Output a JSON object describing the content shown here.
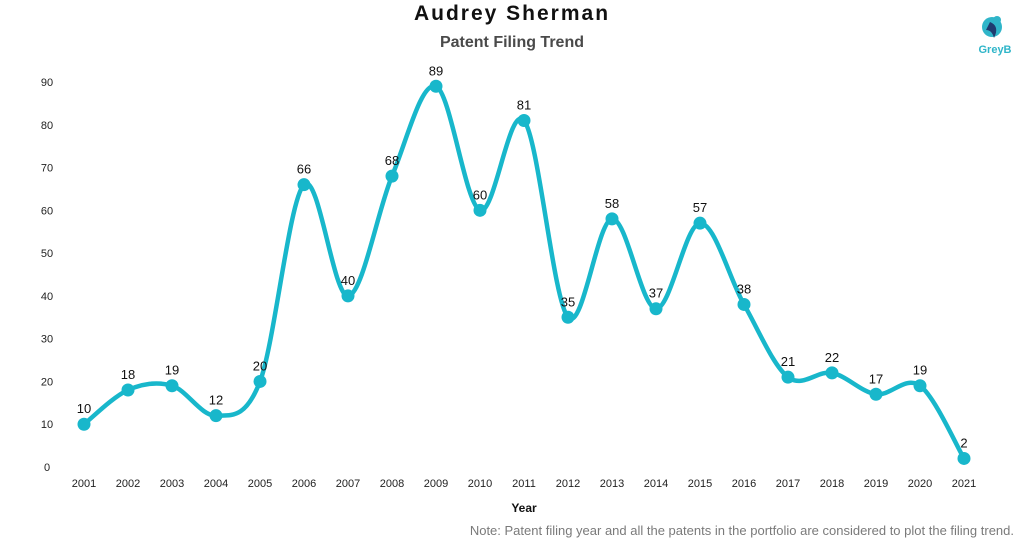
{
  "chart_data": {
    "type": "line",
    "title": "Audrey Sherman",
    "subtitle": "Patent Filing Trend",
    "xlabel": "Year",
    "ylabel": "",
    "categories": [
      "2001",
      "2002",
      "2003",
      "2004",
      "2005",
      "2006",
      "2007",
      "2008",
      "2009",
      "2010",
      "2011",
      "2012",
      "2013",
      "2014",
      "2015",
      "2016",
      "2017",
      "2018",
      "2019",
      "2020",
      "2021"
    ],
    "series": [
      {
        "values": [
          10,
          18,
          19,
          12,
          20,
          66,
          40,
          68,
          89,
          60,
          81,
          35,
          58,
          37,
          57,
          38,
          21,
          22,
          17,
          19,
          2
        ]
      }
    ],
    "ylim": [
      0,
      90
    ],
    "yticks": [
      0,
      10,
      20,
      30,
      40,
      50,
      60,
      70,
      80,
      90
    ],
    "grid": false,
    "line_color": "#18b7cb",
    "data_labels": true
  },
  "logo": {
    "text": "GreyB",
    "color": "#2fb5c9"
  },
  "note": "Note: Patent filing year and all the patents in the portfolio are considered to plot the filing trend."
}
